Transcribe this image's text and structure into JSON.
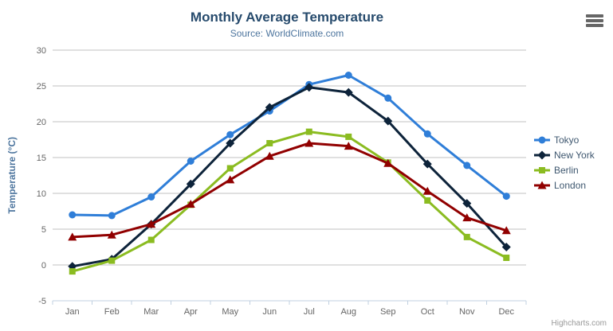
{
  "title": "Monthly Average Temperature",
  "subtitle": "Source: WorldClimate.com",
  "credits": "Highcharts.com",
  "icons": {
    "context_menu": "hamburger-icon"
  },
  "colors": {
    "title": "#274b6d",
    "subtitle": "#4d759e",
    "axis_title": "#4d759e",
    "tick_label": "#666666",
    "legend_text": "#3E576F",
    "gridline": "#C0C0C0",
    "axis_line": "#C0D0E0",
    "credits": "#999999"
  },
  "chart_data": {
    "type": "line",
    "title": "Monthly Average Temperature",
    "subtitle": "Source: WorldClimate.com",
    "xlabel": "",
    "ylabel": "Temperature (°C)",
    "categories": [
      "Jan",
      "Feb",
      "Mar",
      "Apr",
      "May",
      "Jun",
      "Jul",
      "Aug",
      "Sep",
      "Oct",
      "Nov",
      "Dec"
    ],
    "series": [
      {
        "name": "Tokyo",
        "color": "#2f7ed8",
        "marker": "circle",
        "values": [
          7.0,
          6.9,
          9.5,
          14.5,
          18.2,
          21.5,
          25.2,
          26.5,
          23.3,
          18.3,
          13.9,
          9.6
        ]
      },
      {
        "name": "New York",
        "color": "#0d233a",
        "marker": "diamond",
        "values": [
          -0.2,
          0.8,
          5.7,
          11.3,
          17.0,
          22.0,
          24.8,
          24.1,
          20.1,
          14.1,
          8.6,
          2.5
        ]
      },
      {
        "name": "Berlin",
        "color": "#8bbc21",
        "marker": "square",
        "values": [
          -0.9,
          0.6,
          3.5,
          8.4,
          13.5,
          17.0,
          18.6,
          17.9,
          14.3,
          9.0,
          3.9,
          1.0
        ]
      },
      {
        "name": "London",
        "color": "#910000",
        "marker": "triangle",
        "values": [
          3.9,
          4.2,
          5.7,
          8.5,
          11.9,
          15.2,
          17.0,
          16.6,
          14.2,
          10.3,
          6.6,
          4.8
        ]
      }
    ],
    "ylim": [
      -5,
      30
    ],
    "yticks": [
      -5,
      0,
      5,
      10,
      15,
      20,
      25,
      30
    ],
    "grid": true,
    "legend_position": "right"
  }
}
